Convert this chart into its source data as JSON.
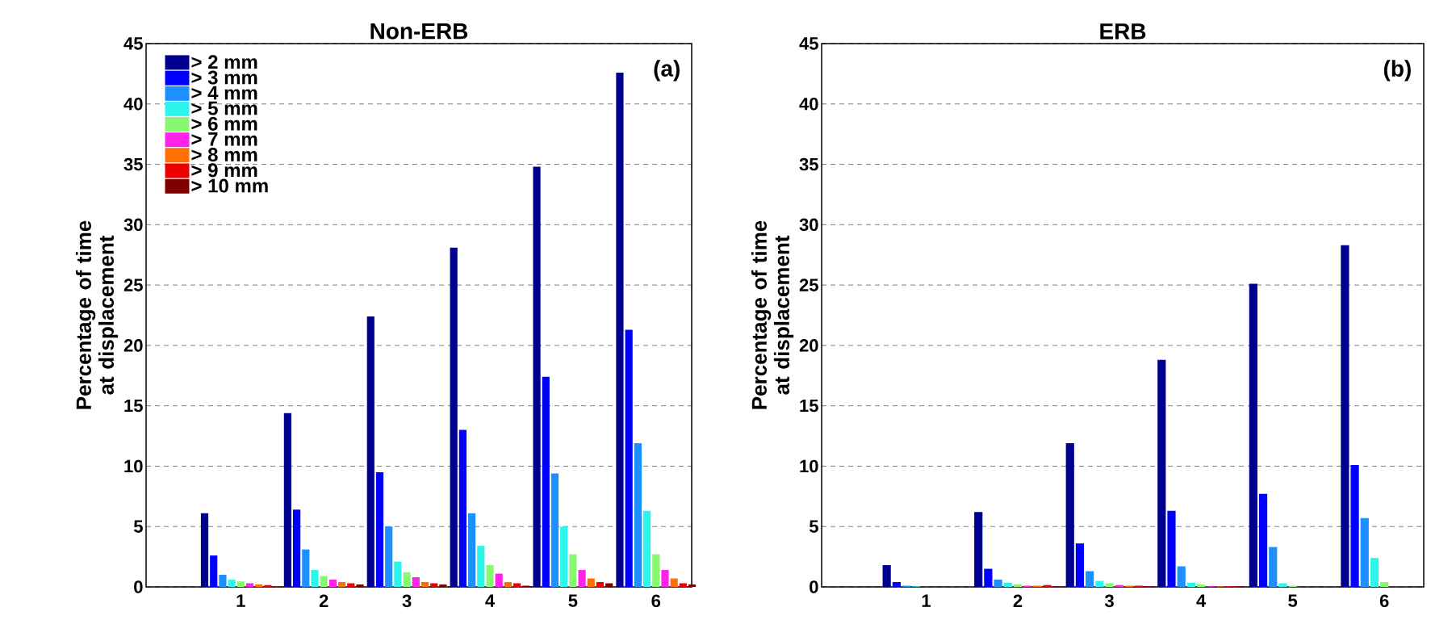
{
  "chart_data": [
    {
      "type": "bar",
      "title": "Non-ERB",
      "ylabel": "Percentage of time at displacement",
      "annotations": [
        "(a)"
      ],
      "categories": [
        "1",
        "2",
        "3",
        "4",
        "5",
        "6"
      ],
      "ylim": [
        0,
        45
      ],
      "yticks": [
        0,
        5,
        10,
        15,
        20,
        25,
        30,
        35,
        40,
        45
      ],
      "grid": "y",
      "legend": "top left",
      "series": [
        {
          "name": "> 2 mm",
          "color": "#00008f",
          "values": [
            6.1,
            14.4,
            22.4,
            28.1,
            34.8,
            42.6
          ]
        },
        {
          "name": "> 3 mm",
          "color": "#0000ff",
          "values": [
            2.6,
            6.4,
            9.5,
            13.0,
            17.4,
            21.3
          ]
        },
        {
          "name": "> 4 mm",
          "color": "#1e8fff",
          "values": [
            1.0,
            3.1,
            5.0,
            6.1,
            9.4,
            11.9
          ]
        },
        {
          "name": "> 5 mm",
          "color": "#2ef5ec",
          "values": [
            0.6,
            1.4,
            2.1,
            3.4,
            5.0,
            6.3
          ]
        },
        {
          "name": "> 6 mm",
          "color": "#88f870",
          "values": [
            0.45,
            0.9,
            1.2,
            1.8,
            2.7,
            2.7
          ]
        },
        {
          "name": "> 7 mm",
          "color": "#ff22e8",
          "values": [
            0.3,
            0.6,
            0.8,
            1.1,
            1.4,
            1.4
          ]
        },
        {
          "name": "> 8 mm",
          "color": "#ff7000",
          "values": [
            0.2,
            0.4,
            0.4,
            0.4,
            0.7,
            0.7
          ]
        },
        {
          "name": "> 9 mm",
          "color": "#ee0000",
          "values": [
            0.15,
            0.3,
            0.3,
            0.3,
            0.4,
            0.3
          ]
        },
        {
          "name": "> 10 mm",
          "color": "#800000",
          "values": [
            0.05,
            0.2,
            0.2,
            0.1,
            0.3,
            0.2
          ]
        }
      ]
    },
    {
      "type": "bar",
      "title": "ERB",
      "ylabel": "Percentage of time at displacement",
      "annotations": [
        "(b)"
      ],
      "categories": [
        "1",
        "2",
        "3",
        "4",
        "5",
        "6"
      ],
      "ylim": [
        0,
        45
      ],
      "yticks": [
        0,
        5,
        10,
        15,
        20,
        25,
        30,
        35,
        40,
        45
      ],
      "grid": "y",
      "series": [
        {
          "color": "#00008f",
          "values": [
            1.8,
            6.2,
            11.9,
            18.8,
            25.1,
            28.3
          ]
        },
        {
          "color": "#0000ff",
          "values": [
            0.4,
            1.5,
            3.6,
            6.3,
            7.7,
            10.1
          ]
        },
        {
          "color": "#1e8fff",
          "values": [
            0.1,
            0.6,
            1.3,
            1.7,
            3.3,
            5.7
          ]
        },
        {
          "color": "#2ef5ec",
          "values": [
            0.05,
            0.35,
            0.5,
            0.35,
            0.3,
            2.4
          ]
        },
        {
          "color": "#88f870",
          "values": [
            0,
            0.2,
            0.3,
            0.2,
            0.1,
            0.4
          ]
        },
        {
          "color": "#ff22e8",
          "values": [
            0,
            0.1,
            0.15,
            0.05,
            0,
            0
          ]
        },
        {
          "color": "#ff7000",
          "values": [
            0,
            0.1,
            0.1,
            0.05,
            0,
            0
          ]
        },
        {
          "color": "#ee0000",
          "values": [
            0,
            0.15,
            0.1,
            0.05,
            0,
            0
          ]
        },
        {
          "color": "#800000",
          "values": [
            0,
            0.05,
            0.05,
            0.05,
            0,
            0
          ]
        }
      ]
    }
  ]
}
